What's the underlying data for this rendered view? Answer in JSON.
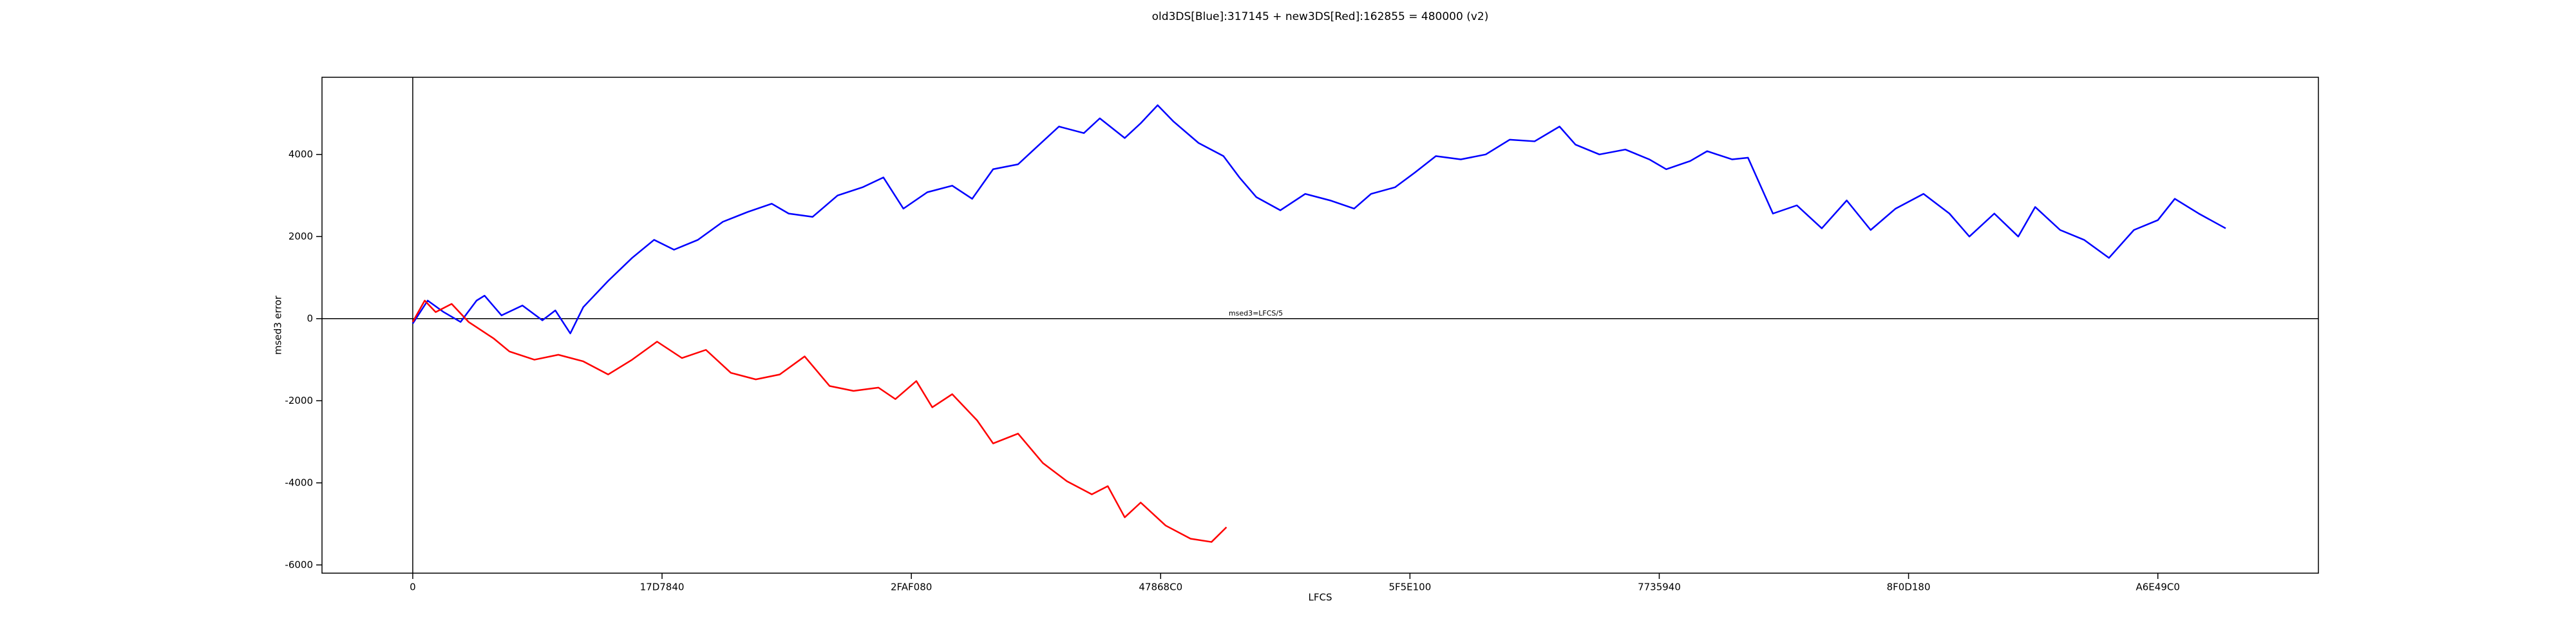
{
  "chart_data": {
    "type": "line",
    "title": "old3DS[Blue]:317145 + new3DS[Red]:162855 = 480000 (v2)",
    "xlabel": "LFCS",
    "ylabel": "msed3 error",
    "annotation": "msed3=LFCS/5",
    "xlim": [
      -9100000,
      191100000
    ],
    "ylim": [
      -6200,
      5880
    ],
    "xticks": [
      0,
      {
        "value": 25000000,
        "label": "17D7840"
      },
      {
        "value": 50000000,
        "label": "2FAF080"
      },
      {
        "value": 75000000,
        "label": "47868C0"
      },
      {
        "value": 100000000,
        "label": "5F5E100"
      },
      {
        "value": 125000000,
        "label": "7735940"
      },
      {
        "value": 150000000,
        "label": "8F0D180"
      },
      {
        "value": 175000000,
        "label": "A6E49C0"
      }
    ],
    "yticks": [
      -6000,
      -4000,
      -2000,
      0,
      2000,
      4000
    ],
    "reference_lines": {
      "x": 0,
      "y": 0
    },
    "grid": false,
    "series": [
      {
        "name": "old3DS",
        "color": "#0000ff",
        "x": [
          0,
          1500000,
          3100000,
          4800000,
          6400000,
          7200000,
          8900000,
          11000000,
          13000000,
          14300000,
          15800000,
          17100000,
          19600000,
          22000000,
          24200000,
          26200000,
          28600000,
          31100000,
          33600000,
          36000000,
          37700000,
          40100000,
          42600000,
          45100000,
          47200000,
          49200000,
          51600000,
          54100000,
          56100000,
          58200000,
          60700000,
          62300000,
          64800000,
          67300000,
          68900000,
          71400000,
          73000000,
          74700000,
          76300000,
          78800000,
          81300000,
          82900000,
          84600000,
          87000000,
          89500000,
          92000000,
          94400000,
          96100000,
          98500000,
          100500000,
          102600000,
          105100000,
          107600000,
          110000000,
          112500000,
          115000000,
          116600000,
          119000000,
          121600000,
          124000000,
          125700000,
          128100000,
          129800000,
          132300000,
          133900000,
          136400000,
          138800000,
          141300000,
          143800000,
          146200000,
          148700000,
          151500000,
          154100000,
          156100000,
          158600000,
          161000000,
          162700000,
          165200000,
          167600000,
          170100000,
          172600000,
          175000000,
          176700000,
          179100000,
          181800000
        ],
        "values": [
          -120,
          440,
          160,
          -80,
          440,
          560,
          80,
          320,
          -40,
          200,
          -360,
          280,
          920,
          1480,
          1920,
          1680,
          1920,
          2360,
          2600,
          2800,
          2560,
          2480,
          3000,
          3200,
          3440,
          2680,
          3080,
          3240,
          2920,
          3640,
          3760,
          4120,
          4680,
          4520,
          4880,
          4400,
          4760,
          5200,
          4800,
          4280,
          3960,
          3440,
          2960,
          2640,
          3040,
          2880,
          2680,
          3040,
          3200,
          3560,
          3960,
          3880,
          4000,
          4360,
          4320,
          4680,
          4240,
          4000,
          4120,
          3880,
          3640,
          3840,
          4080,
          3880,
          3920,
          2560,
          2760,
          2200,
          2880,
          2160,
          2680,
          3040,
          2560,
          2000,
          2560,
          2000,
          2720,
          2160,
          1920,
          1480,
          2160,
          2400,
          2920,
          2560,
          2200
        ]
      },
      {
        "name": "new3DS",
        "color": "#ff0000",
        "x": [
          0,
          1200000,
          2300000,
          3900000,
          5600000,
          8100000,
          9700000,
          12200000,
          14600000,
          17100000,
          19600000,
          22000000,
          24500000,
          27000000,
          29400000,
          31900000,
          34400000,
          36800000,
          39300000,
          41800000,
          44200000,
          46700000,
          48400000,
          50500000,
          52100000,
          54100000,
          56600000,
          58200000,
          60700000,
          63200000,
          65600000,
          68100000,
          69700000,
          71400000,
          73000000,
          75500000,
          78000000,
          80100000,
          81600000
        ],
        "values": [
          -80,
          440,
          160,
          360,
          -80,
          -480,
          -800,
          -1000,
          -880,
          -1040,
          -1360,
          -1000,
          -560,
          -960,
          -760,
          -1320,
          -1480,
          -1360,
          -920,
          -1640,
          -1760,
          -1680,
          -1960,
          -1520,
          -2160,
          -1840,
          -2480,
          -3040,
          -2800,
          -3520,
          -3960,
          -4280,
          -4080,
          -4840,
          -4480,
          -5040,
          -5360,
          -5440,
          -5080
        ]
      }
    ]
  }
}
